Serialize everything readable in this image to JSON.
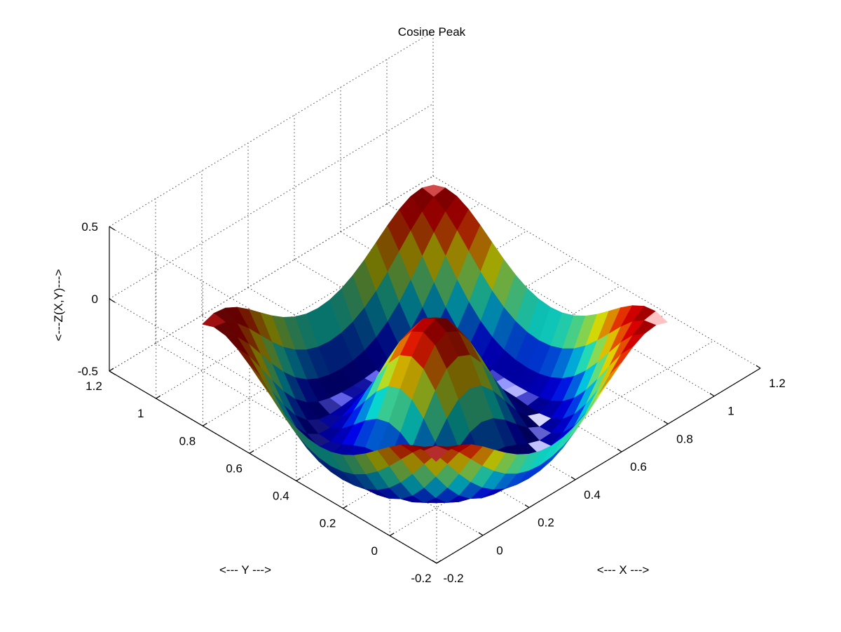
{
  "chart_data": {
    "type": "surface3d",
    "title": "Cosine Peak",
    "xlabel": "<--- X --->",
    "ylabel": "<--- Y --->",
    "zlabel": "<---Z(X,Y)--->",
    "xlim": [
      -0.2,
      1.2
    ],
    "ylim": [
      -0.2,
      1.2
    ],
    "zlim": [
      -0.5,
      0.5
    ],
    "xticks": [
      "-0.2",
      "0",
      "0.2",
      "0.4",
      "0.6",
      "0.8",
      "1",
      "1.2"
    ],
    "yticks": [
      "-0.2",
      "0",
      "0.2",
      "0.4",
      "0.6",
      "0.8",
      "1",
      "1.2"
    ],
    "zticks": [
      "-0.5",
      "0",
      "0.5"
    ],
    "grid": true,
    "colormap": "jet",
    "surface": {
      "function": "cos(3*pi*r) with r = distance from (0.5, 0.5)",
      "x_range": [
        0,
        1
      ],
      "y_range": [
        0,
        1
      ],
      "samples": 21,
      "z_range": [
        -0.45,
        0.35
      ]
    }
  }
}
